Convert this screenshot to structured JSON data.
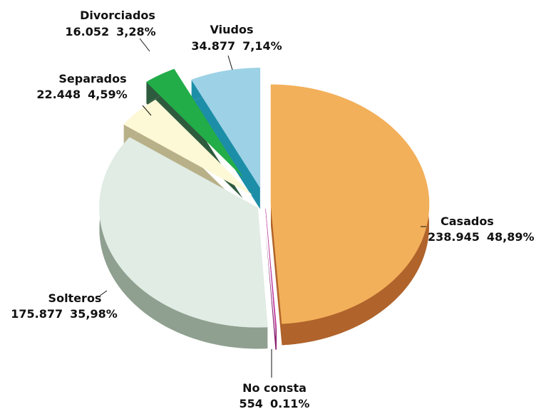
{
  "chart_data": {
    "type": "pie3d",
    "categories": [
      "Casados",
      "No consta",
      "Solteros",
      "Separados",
      "Divorciados",
      "Viudos"
    ],
    "values": [
      238945,
      554,
      175877,
      22448,
      16052,
      34877
    ],
    "value_labels": [
      "238.945",
      "554",
      "175.877",
      "22.448",
      "16.052",
      "34.877"
    ],
    "percentages": [
      48.89,
      0.11,
      35.98,
      4.59,
      3.28,
      7.14
    ],
    "percentage_labels": [
      "48,89%",
      "0.11%",
      "35,98%",
      "4,59%",
      "3,28%",
      "7,14%"
    ],
    "colors": [
      "#f3b05a",
      "#c040a0",
      "#e0ece4",
      "#fdf8d6",
      "#22ad48",
      "#9dd2e6"
    ],
    "side_colors": [
      "#b0632b",
      "#8a2070",
      "#8fa090",
      "#b8b088",
      "#2e5b3e",
      "#1d8ea8"
    ]
  }
}
